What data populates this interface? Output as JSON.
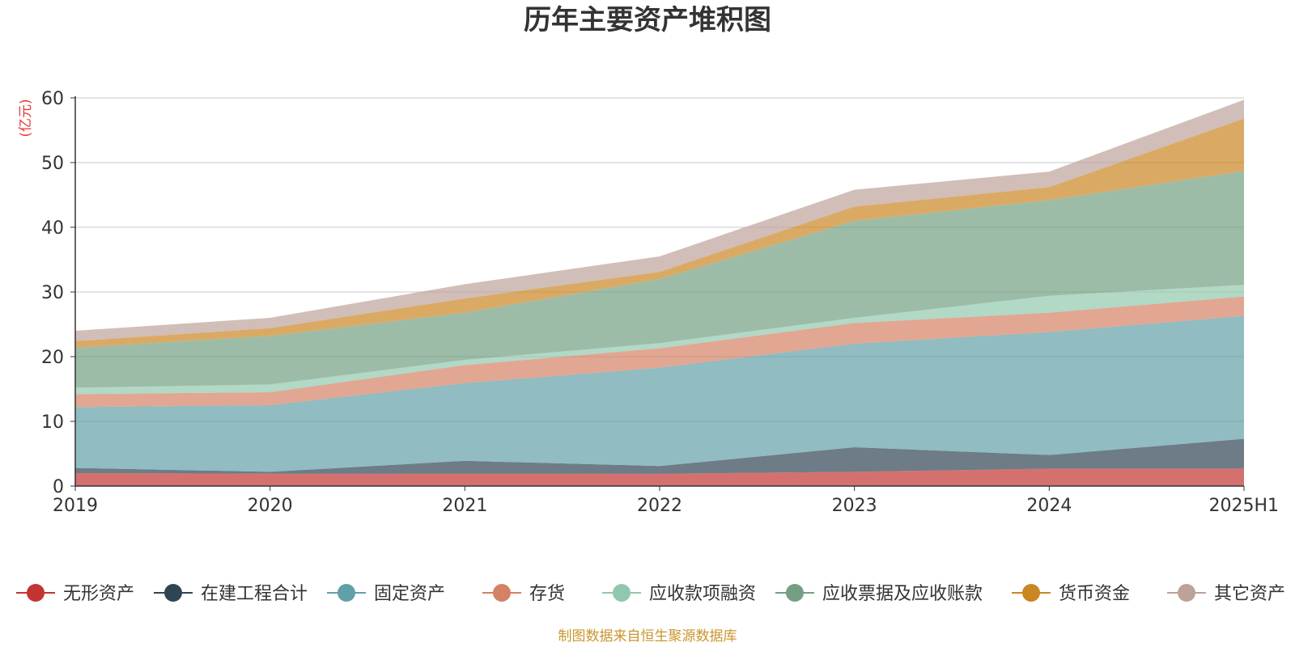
{
  "chart_data": {
    "type": "area",
    "stacked": true,
    "title": "历年主要资产堆积图",
    "ylabel": "(亿元)",
    "xlabel": "",
    "x": [
      "2019",
      "2020",
      "2021",
      "2022",
      "2023",
      "2024",
      "2025H1"
    ],
    "ylim": [
      0,
      60
    ],
    "yticks": [
      0,
      10,
      20,
      30,
      40,
      50,
      60
    ],
    "grid": true,
    "legend_position": "bottom",
    "series": [
      {
        "name": "无形资产",
        "color": "#c23531",
        "values": [
          2.0,
          1.9,
          1.9,
          1.9,
          2.2,
          2.7,
          2.7
        ]
      },
      {
        "name": "在建工程合计",
        "color": "#2f4554",
        "values": [
          0.8,
          0.3,
          2.0,
          1.2,
          3.8,
          2.1,
          4.6
        ]
      },
      {
        "name": "固定资产",
        "color": "#61a0a8",
        "values": [
          9.4,
          10.3,
          12.0,
          15.2,
          16.0,
          19.0,
          19.0
        ]
      },
      {
        "name": "存货",
        "color": "#d48265",
        "values": [
          2.0,
          2.0,
          2.8,
          3.0,
          3.2,
          3.0,
          3.0
        ]
      },
      {
        "name": "应收款项融资",
        "color": "#91c7ae",
        "values": [
          1.0,
          1.2,
          0.8,
          0.8,
          0.8,
          2.6,
          1.8
        ]
      },
      {
        "name": "应收票据及应收账款",
        "color": "#749f83",
        "values": [
          6.2,
          7.5,
          7.3,
          9.9,
          15.0,
          14.8,
          17.6
        ]
      },
      {
        "name": "货币资金",
        "color": "#ca8622",
        "values": [
          1.0,
          1.2,
          2.2,
          1.1,
          2.2,
          2.0,
          8.1
        ]
      },
      {
        "name": "其它资产",
        "color": "#bda29a",
        "values": [
          1.6,
          1.6,
          2.2,
          2.4,
          2.6,
          2.4,
          2.9
        ]
      }
    ]
  },
  "source_text": "制图数据来自恒生聚源数据库"
}
